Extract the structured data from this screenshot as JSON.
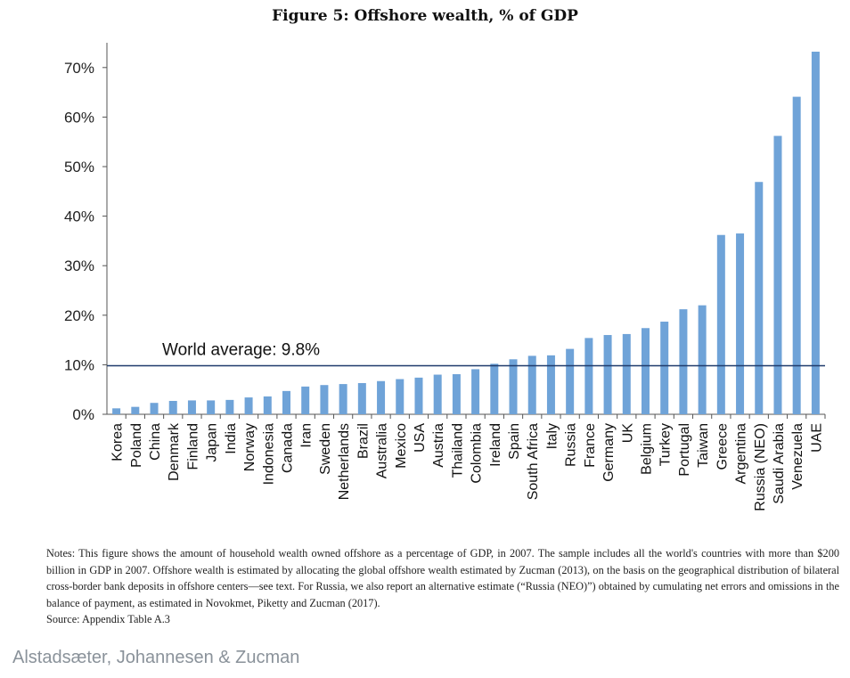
{
  "chart_data": {
    "type": "bar",
    "title": "Figure 5: Offshore wealth, % of GDP",
    "categories": [
      "Korea",
      "Poland",
      "China",
      "Denmark",
      "Finland",
      "Japan",
      "India",
      "Norway",
      "Indonesia",
      "Canada",
      "Iran",
      "Sweden",
      "Netherlands",
      "Brazil",
      "Australia",
      "Mexico",
      "USA",
      "Austria",
      "Thailand",
      "Colombia",
      "Ireland",
      "Spain",
      "South Africa",
      "Italy",
      "Russia",
      "France",
      "Germany",
      "UK",
      "Belgium",
      "Turkey",
      "Portugal",
      "Taiwan",
      "Greece",
      "Argentina",
      "Russia (NEO)",
      "Saudi Arabia",
      "Venezuela",
      "UAE"
    ],
    "values": [
      1.2,
      1.5,
      2.3,
      2.7,
      2.8,
      2.8,
      2.9,
      3.4,
      3.6,
      4.7,
      5.6,
      5.9,
      6.1,
      6.3,
      6.7,
      7.1,
      7.4,
      8.0,
      8.1,
      9.1,
      10.2,
      11.1,
      11.8,
      11.9,
      13.2,
      15.4,
      16.0,
      16.2,
      17.4,
      18.7,
      21.2,
      22.0,
      36.2,
      36.5,
      46.9,
      56.2,
      64.1,
      73.2
    ],
    "ylim": [
      0,
      75
    ],
    "yticks": [
      0,
      10,
      20,
      30,
      40,
      50,
      60,
      70
    ],
    "ytick_labels": [
      "0%",
      "10%",
      "20%",
      "30%",
      "40%",
      "50%",
      "60%",
      "70%"
    ],
    "bar_color": "#6fa3d8",
    "reference_line": {
      "label": "World average: 9.8%",
      "value": 9.8,
      "color": "#1f3a6b"
    },
    "grid": false,
    "xlabel": "",
    "ylabel": ""
  },
  "notes": [
    "Notes: This figure shows the amount of household wealth owned offshore as a percentage of GDP, in 2007. The sample includes all the world's countries with more than $200 billion in GDP in 2007. Offshore wealth is estimated by allocating the global offshore wealth estimated by Zucman (2013), on the basis on the geographical distribution of bilateral cross-border bank deposits in offshore centers—see text. For Russia, we also report an alternative estimate (“Russia (NEO)”) obtained by cumulating net errors and omissions in the balance of payment, as estimated in Novokmet, Piketty and Zucman (2017).",
    "Source: Appendix Table A.3"
  ],
  "credit": "Alstadsæter, Johannesen & Zucman"
}
